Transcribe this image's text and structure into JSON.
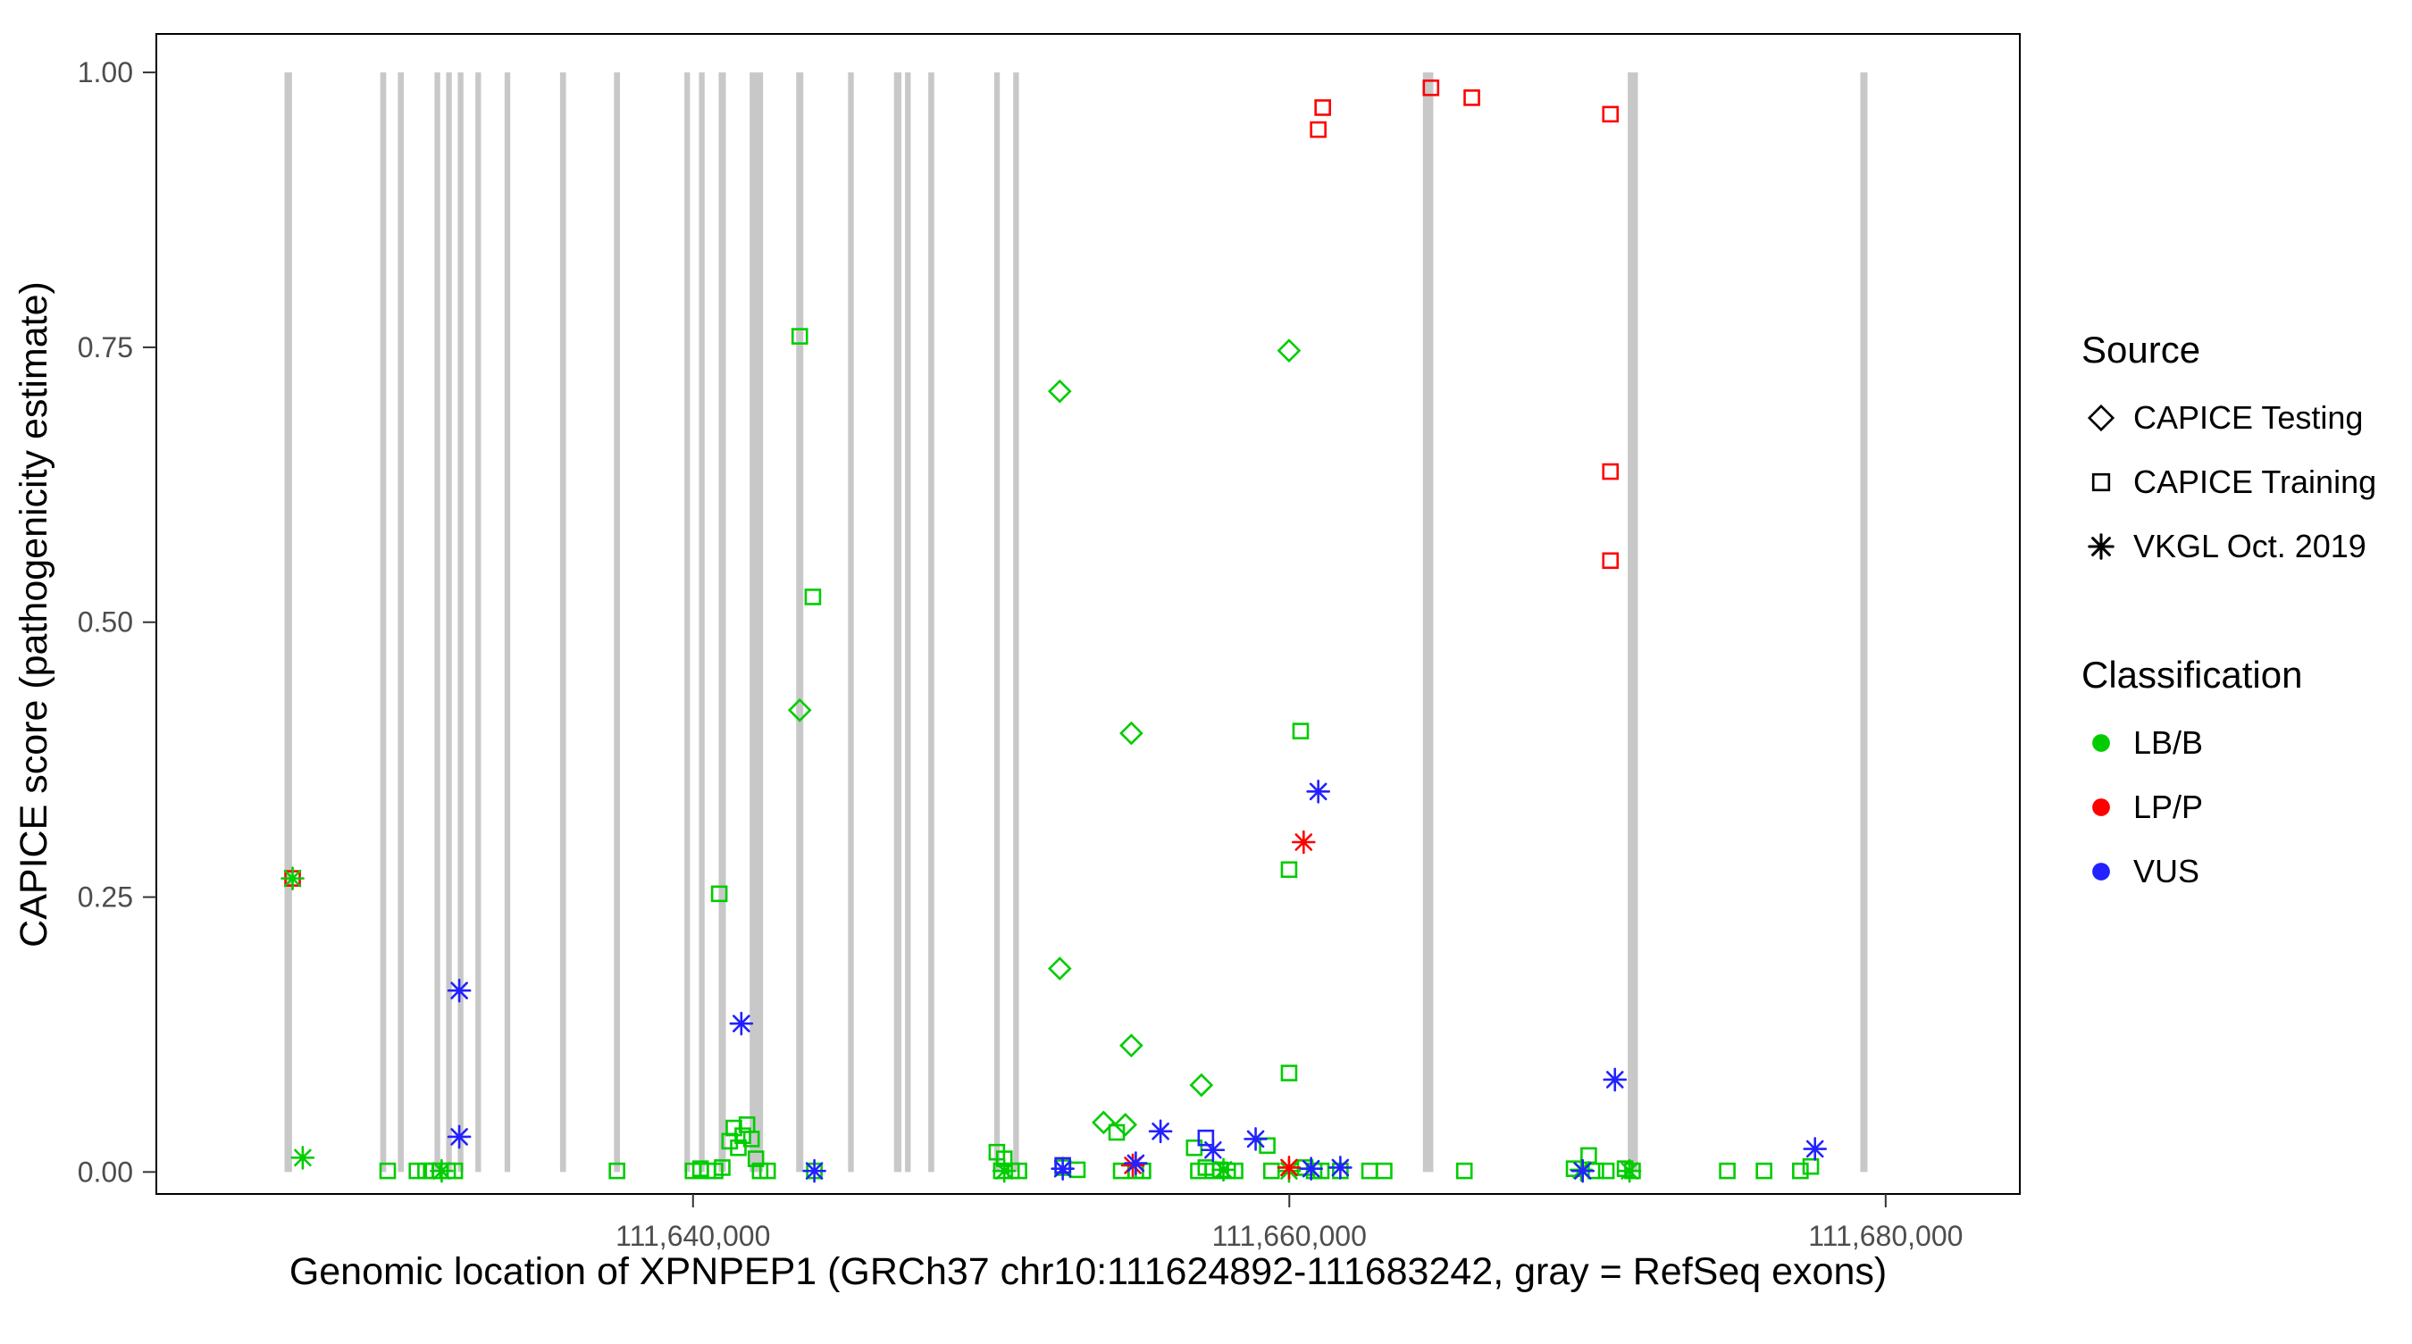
{
  "chart_data": {
    "type": "scatter",
    "title": "",
    "xlabel": "Genomic location of XPNPEP1 (GRCh37 chr10:111624892-111683242, gray = RefSeq exons)",
    "ylabel": "CAPICE score (pathogenicity estimate)",
    "x_domain": [
      111622000,
      111684500
    ],
    "y_domain": [
      -0.02,
      1.035
    ],
    "x_ticks": [
      {
        "value": 111640000,
        "label": "111,640,000"
      },
      {
        "value": 111660000,
        "label": "111,660,000"
      },
      {
        "value": 111680000,
        "label": "111,680,000"
      }
    ],
    "y_ticks": [
      {
        "value": 0.0,
        "label": "0.00"
      },
      {
        "value": 0.25,
        "label": "0.25"
      },
      {
        "value": 0.5,
        "label": "0.50"
      },
      {
        "value": 0.75,
        "label": "0.75"
      },
      {
        "value": 1.0,
        "label": "1.00"
      }
    ],
    "grid": false,
    "legend_position": "right",
    "exon_color": "#C8C8C8",
    "class_colors": {
      "g": "#00CC00",
      "r": "#FF0000",
      "b": "#2222FF"
    },
    "class_names": {
      "g": "LB/B",
      "r": "LP/P",
      "b": "VUS"
    },
    "shape_names": {
      "d": "CAPICE Testing",
      "s": "CAPICE Training",
      "a": "VKGL Oct. 2019"
    },
    "exons": [
      [
        111626300,
        111626550
      ],
      [
        111629510,
        111629710
      ],
      [
        111630100,
        111630300
      ],
      [
        111631330,
        111631520
      ],
      [
        111631720,
        111631910
      ],
      [
        111632110,
        111632300
      ],
      [
        111632700,
        111632890
      ],
      [
        111633680,
        111633870
      ],
      [
        111635540,
        111635740
      ],
      [
        111637350,
        111637550
      ],
      [
        111639710,
        111639900
      ],
      [
        111640200,
        111640390
      ],
      [
        111640860,
        111641100
      ],
      [
        111641900,
        111642350
      ],
      [
        111643460,
        111643700
      ],
      [
        111645200,
        111645390
      ],
      [
        111646740,
        111646990
      ],
      [
        111647110,
        111647300
      ],
      [
        111647890,
        111648090
      ],
      [
        111650100,
        111650290
      ],
      [
        111650740,
        111650930
      ],
      [
        111664480,
        111664830
      ],
      [
        111671350,
        111671690
      ],
      [
        111679150,
        111679390
      ]
    ],
    "points": [
      [
        111652300,
        0.71,
        "d",
        "g"
      ],
      [
        111659990,
        0.747,
        "d",
        "g"
      ],
      [
        111643580,
        0.42,
        "d",
        "g"
      ],
      [
        111654700,
        0.399,
        "d",
        "g"
      ],
      [
        111652300,
        0.185,
        "d",
        "g"
      ],
      [
        111654700,
        0.115,
        "d",
        "g"
      ],
      [
        111657050,
        0.079,
        "d",
        "g"
      ],
      [
        111653770,
        0.045,
        "d",
        "g"
      ],
      [
        111654500,
        0.043,
        "d",
        "g"
      ],
      [
        111643580,
        0.76,
        "s",
        "g"
      ],
      [
        111644020,
        0.523,
        "s",
        "g"
      ],
      [
        111640880,
        0.253,
        "s",
        "g"
      ],
      [
        111660380,
        0.401,
        "s",
        "g"
      ],
      [
        111659990,
        0.275,
        "s",
        "g"
      ],
      [
        111659990,
        0.09,
        "s",
        "g"
      ],
      [
        111629760,
        0.001,
        "s",
        "g"
      ],
      [
        111630740,
        0.001,
        "s",
        "g"
      ],
      [
        111631030,
        0.001,
        "s",
        "g"
      ],
      [
        111631280,
        0.001,
        "s",
        "g"
      ],
      [
        111631520,
        0.001,
        "s",
        "g"
      ],
      [
        111631770,
        0.001,
        "s",
        "g"
      ],
      [
        111632010,
        0.001,
        "s",
        "g"
      ],
      [
        111637450,
        0.001,
        "s",
        "g"
      ],
      [
        111640000,
        0.001,
        "s",
        "g"
      ],
      [
        111640250,
        0.003,
        "s",
        "g"
      ],
      [
        111640490,
        0.001,
        "s",
        "g"
      ],
      [
        111640740,
        0.001,
        "s",
        "g"
      ],
      [
        111640980,
        0.004,
        "s",
        "g"
      ],
      [
        111641230,
        0.028,
        "s",
        "g"
      ],
      [
        111641370,
        0.04,
        "s",
        "g"
      ],
      [
        111641520,
        0.022,
        "s",
        "g"
      ],
      [
        111641670,
        0.033,
        "s",
        "g"
      ],
      [
        111641810,
        0.043,
        "s",
        "g"
      ],
      [
        111641960,
        0.03,
        "s",
        "g"
      ],
      [
        111642110,
        0.012,
        "s",
        "g"
      ],
      [
        111642250,
        0.001,
        "s",
        "g"
      ],
      [
        111642500,
        0.001,
        "s",
        "g"
      ],
      [
        111644070,
        0.001,
        "s",
        "g"
      ],
      [
        111650190,
        0.018,
        "s",
        "g"
      ],
      [
        111650440,
        0.012,
        "s",
        "g"
      ],
      [
        111650340,
        0.001,
        "s",
        "g"
      ],
      [
        111650680,
        0.001,
        "s",
        "g"
      ],
      [
        111650930,
        0.001,
        "s",
        "g"
      ],
      [
        111652400,
        0.004,
        "s",
        "g"
      ],
      [
        111652890,
        0.002,
        "s",
        "g"
      ],
      [
        111654210,
        0.036,
        "s",
        "g"
      ],
      [
        111654360,
        0.001,
        "s",
        "g"
      ],
      [
        111654850,
        0.001,
        "s",
        "g"
      ],
      [
        111655090,
        0.001,
        "s",
        "g"
      ],
      [
        111656810,
        0.022,
        "s",
        "g"
      ],
      [
        111656950,
        0.001,
        "s",
        "g"
      ],
      [
        111657200,
        0.004,
        "s",
        "g"
      ],
      [
        111657440,
        0.001,
        "s",
        "g"
      ],
      [
        111657690,
        0.002,
        "s",
        "g"
      ],
      [
        111657930,
        0.001,
        "s",
        "g"
      ],
      [
        111658180,
        0.001,
        "s",
        "g"
      ],
      [
        111659260,
        0.024,
        "s",
        "g"
      ],
      [
        111659400,
        0.001,
        "s",
        "g"
      ],
      [
        111660530,
        0.004,
        "s",
        "g"
      ],
      [
        111660830,
        0.001,
        "s",
        "g"
      ],
      [
        111661070,
        0.001,
        "s",
        "g"
      ],
      [
        111661710,
        0.001,
        "s",
        "g"
      ],
      [
        111662690,
        0.001,
        "s",
        "g"
      ],
      [
        111663180,
        0.001,
        "s",
        "g"
      ],
      [
        111665870,
        0.001,
        "s",
        "g"
      ],
      [
        111669550,
        0.003,
        "s",
        "g"
      ],
      [
        111670040,
        0.015,
        "s",
        "g"
      ],
      [
        111670280,
        0.001,
        "s",
        "g"
      ],
      [
        111670630,
        0.001,
        "s",
        "g"
      ],
      [
        111671260,
        0.003,
        "s",
        "g"
      ],
      [
        111671510,
        0.001,
        "s",
        "g"
      ],
      [
        111674690,
        0.001,
        "s",
        "g"
      ],
      [
        111675920,
        0.001,
        "s",
        "g"
      ],
      [
        111677140,
        0.001,
        "s",
        "g"
      ],
      [
        111677490,
        0.005,
        "s",
        "g"
      ],
      [
        111661120,
        0.968,
        "s",
        "r"
      ],
      [
        111660970,
        0.948,
        "s",
        "r"
      ],
      [
        111664750,
        0.986,
        "s",
        "r"
      ],
      [
        111666120,
        0.977,
        "s",
        "r"
      ],
      [
        111670770,
        0.962,
        "s",
        "r"
      ],
      [
        111670770,
        0.637,
        "s",
        "r"
      ],
      [
        111670770,
        0.556,
        "s",
        "r"
      ],
      [
        111626570,
        0.267,
        "s",
        "r"
      ],
      [
        111657200,
        0.031,
        "s",
        "b"
      ],
      [
        111652400,
        0.006,
        "s",
        "b"
      ],
      [
        111626570,
        0.267,
        "a",
        "g"
      ],
      [
        111626910,
        0.013,
        "a",
        "g"
      ],
      [
        111631570,
        0.001,
        "a",
        "g"
      ],
      [
        111650440,
        0.001,
        "a",
        "g"
      ],
      [
        111657790,
        0.002,
        "a",
        "g"
      ],
      [
        111659990,
        0.001,
        "a",
        "g"
      ],
      [
        111669790,
        0.002,
        "a",
        "g"
      ],
      [
        111671410,
        0.001,
        "a",
        "g"
      ],
      [
        111660480,
        0.3,
        "a",
        "r"
      ],
      [
        111659990,
        0.004,
        "a",
        "r"
      ],
      [
        111654750,
        0.006,
        "a",
        "r"
      ],
      [
        111632160,
        0.165,
        "a",
        "b"
      ],
      [
        111641620,
        0.135,
        "a",
        "b"
      ],
      [
        111660970,
        0.346,
        "a",
        "b"
      ],
      [
        111632160,
        0.032,
        "a",
        "b"
      ],
      [
        111655680,
        0.037,
        "a",
        "b"
      ],
      [
        111658870,
        0.03,
        "a",
        "b"
      ],
      [
        111670920,
        0.084,
        "a",
        "b"
      ],
      [
        111677630,
        0.021,
        "a",
        "b"
      ],
      [
        111644070,
        0.001,
        "a",
        "b"
      ],
      [
        111652400,
        0.003,
        "a",
        "b"
      ],
      [
        111654850,
        0.008,
        "a",
        "b"
      ],
      [
        111660730,
        0.003,
        "a",
        "b"
      ],
      [
        111661710,
        0.004,
        "a",
        "b"
      ],
      [
        111657440,
        0.02,
        "a",
        "b"
      ],
      [
        111669840,
        0.001,
        "a",
        "b"
      ]
    ]
  },
  "legend": {
    "source_title": "Source",
    "source_items": [
      {
        "label": "CAPICE Testing",
        "shape": "diamond"
      },
      {
        "label": "CAPICE Training",
        "shape": "square"
      },
      {
        "label": "VKGL Oct. 2019",
        "shape": "asterisk"
      }
    ],
    "classification_title": "Classification",
    "classification_items": [
      {
        "label": "LB/B",
        "color": "#00CC00"
      },
      {
        "label": "LP/P",
        "color": "#FF0000"
      },
      {
        "label": "VUS",
        "color": "#2222FF"
      }
    ]
  }
}
